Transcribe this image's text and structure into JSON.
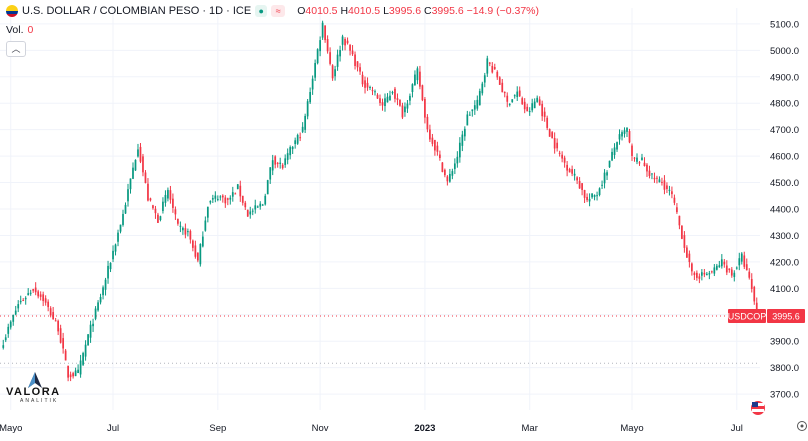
{
  "header": {
    "title": "U.S. DOLLAR / COLOMBIAN PESO · 1D · ICE",
    "open_label": "O",
    "open": "4010.5",
    "high_label": "H",
    "high": "4010.5",
    "low_label": "L",
    "low": "3995.6",
    "close_label": "C",
    "close": "3995.6",
    "change": "−14.9 (−0.37%)"
  },
  "volume": {
    "label": "Vol.",
    "value": "0"
  },
  "logo": {
    "name": "VALORA",
    "sub": "ANALITIK"
  },
  "colors": {
    "up": "#089981",
    "down": "#f23645",
    "price_line": "#f23645",
    "axis_text": "#131722"
  },
  "icons": {
    "settings": "gear-icon",
    "flag": "us-flag-icon"
  },
  "chart_data": {
    "type": "candlestick",
    "title": "U.S. DOLLAR / COLOMBIAN PESO · 1D · ICE",
    "y_ticks": [
      3700,
      3800,
      3900,
      4000,
      4100,
      4200,
      4300,
      4400,
      4500,
      4600,
      4700,
      4800,
      4900,
      5000,
      5100
    ],
    "y_tick_labels": [
      "3700.0",
      "3800.0",
      "3900.0",
      "",
      "4100.0",
      "4200.0",
      "4300.0",
      "4400.0",
      "4500.0",
      "4600.0",
      "4700.0",
      "4800.0",
      "4900.0",
      "5000.0",
      "5100.0"
    ],
    "ylim": [
      3640,
      5160
    ],
    "x_labels": [
      "Mayo",
      "Jul",
      "Sep",
      "Nov",
      "2023",
      "Mar",
      "Mayo",
      "Jul"
    ],
    "x_label_index": [
      3,
      44,
      86,
      127,
      169,
      211,
      252,
      294
    ],
    "last_price": {
      "symbol": "USDCOP",
      "value": "3995.6",
      "raw": 3995.6
    },
    "dotted_levels": [
      3995.6,
      3817
    ],
    "close_anchors": [
      [
        0,
        3900
      ],
      [
        6,
        4040
      ],
      [
        12,
        4100
      ],
      [
        16,
        4060
      ],
      [
        22,
        3950
      ],
      [
        26,
        3770
      ],
      [
        30,
        3780
      ],
      [
        34,
        3920
      ],
      [
        40,
        4100
      ],
      [
        48,
        4380
      ],
      [
        54,
        4640
      ],
      [
        58,
        4440
      ],
      [
        62,
        4360
      ],
      [
        66,
        4470
      ],
      [
        70,
        4330
      ],
      [
        74,
        4310
      ],
      [
        78,
        4200
      ],
      [
        82,
        4420
      ],
      [
        86,
        4450
      ],
      [
        90,
        4430
      ],
      [
        94,
        4480
      ],
      [
        98,
        4380
      ],
      [
        104,
        4420
      ],
      [
        108,
        4590
      ],
      [
        112,
        4560
      ],
      [
        116,
        4640
      ],
      [
        120,
        4700
      ],
      [
        124,
        4900
      ],
      [
        128,
        5100
      ],
      [
        132,
        4900
      ],
      [
        136,
        5050
      ],
      [
        140,
        4980
      ],
      [
        144,
        4880
      ],
      [
        148,
        4850
      ],
      [
        152,
        4790
      ],
      [
        156,
        4850
      ],
      [
        160,
        4760
      ],
      [
        166,
        4920
      ],
      [
        170,
        4700
      ],
      [
        174,
        4610
      ],
      [
        178,
        4500
      ],
      [
        182,
        4600
      ],
      [
        186,
        4750
      ],
      [
        190,
        4800
      ],
      [
        194,
        4960
      ],
      [
        198,
        4900
      ],
      [
        202,
        4800
      ],
      [
        206,
        4840
      ],
      [
        210,
        4760
      ],
      [
        214,
        4820
      ],
      [
        218,
        4710
      ],
      [
        222,
        4620
      ],
      [
        226,
        4560
      ],
      [
        230,
        4510
      ],
      [
        234,
        4430
      ],
      [
        238,
        4460
      ],
      [
        242,
        4550
      ],
      [
        246,
        4660
      ],
      [
        250,
        4700
      ],
      [
        252,
        4590
      ],
      [
        256,
        4580
      ],
      [
        260,
        4520
      ],
      [
        264,
        4500
      ],
      [
        268,
        4450
      ],
      [
        272,
        4300
      ],
      [
        276,
        4150
      ],
      [
        280,
        4150
      ],
      [
        284,
        4160
      ],
      [
        288,
        4200
      ],
      [
        292,
        4150
      ],
      [
        296,
        4220
      ],
      [
        300,
        4100
      ],
      [
        302,
        3995.6
      ]
    ]
  }
}
